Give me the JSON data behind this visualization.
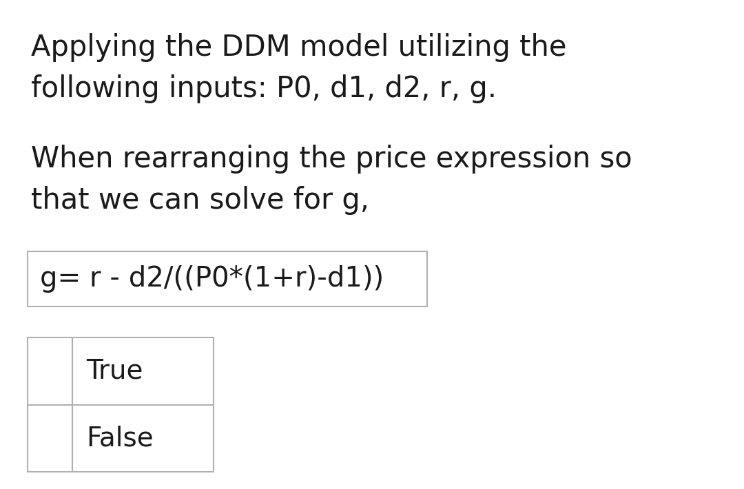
{
  "background_color": "#ffffff",
  "text1_line1": "Applying the DDM model utilizing the",
  "text1_line2": "following inputs: P0, d1, d2, r, g.",
  "text2_line1": "When rearranging the price expression so",
  "text2_line2": "that we can solve for g,",
  "formula": "g= r - d2/((P0*(1+r)-d1))",
  "option1": "True",
  "option2": "False",
  "text_color": "#1a1a1a",
  "box_edge_color": "#b0b0b0",
  "font_size_main": 30,
  "font_size_formula": 29,
  "font_size_options": 28
}
